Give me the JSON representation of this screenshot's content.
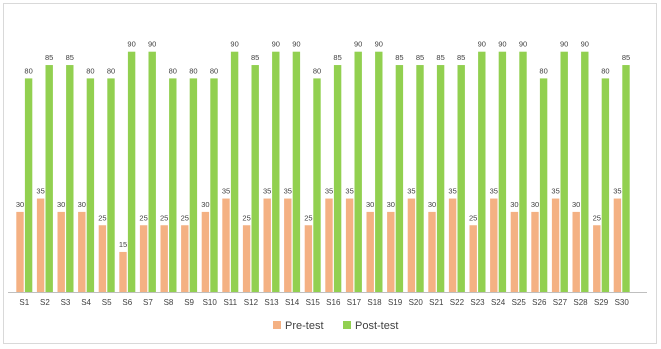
{
  "chart_data": {
    "type": "bar",
    "categories": [
      "S1",
      "S2",
      "S3",
      "S4",
      "S5",
      "S6",
      "S7",
      "S8",
      "S9",
      "S10",
      "S11",
      "S12",
      "S13",
      "S14",
      "S15",
      "S16",
      "S17",
      "S18",
      "S19",
      "S20",
      "S21",
      "S22",
      "S23",
      "S24",
      "S25",
      "S26",
      "S27",
      "S28",
      "S29",
      "S30"
    ],
    "series": [
      {
        "name": "Pre-test",
        "color": "#f4b183",
        "values": [
          30,
          35,
          30,
          30,
          25,
          15,
          25,
          25,
          25,
          30,
          35,
          25,
          35,
          35,
          25,
          35,
          35,
          30,
          30,
          35,
          30,
          35,
          25,
          35,
          30,
          30,
          35,
          30,
          25,
          35
        ]
      },
      {
        "name": "Post-test",
        "color": "#92d050",
        "values": [
          80,
          85,
          85,
          80,
          80,
          90,
          90,
          80,
          80,
          80,
          90,
          85,
          90,
          90,
          80,
          85,
          90,
          90,
          85,
          85,
          85,
          85,
          90,
          90,
          90,
          80,
          90,
          90,
          80,
          85
        ]
      }
    ],
    "ylim": [
      0,
      100
    ],
    "grid": false,
    "data_labels": true,
    "legend_position": "bottom"
  }
}
